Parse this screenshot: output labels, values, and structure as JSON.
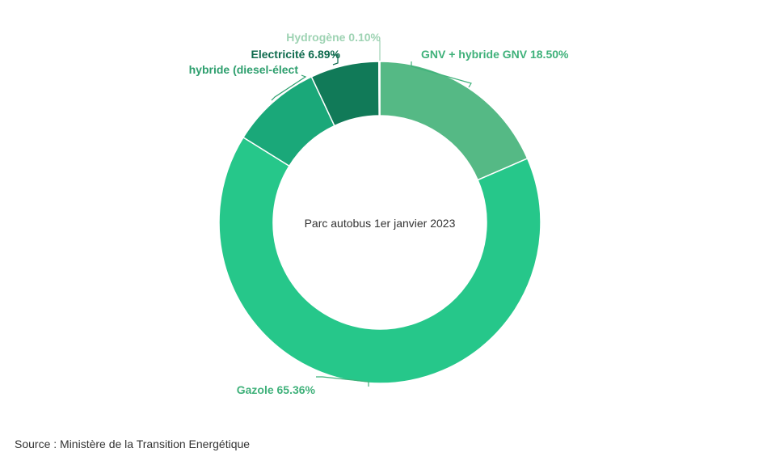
{
  "chart_data": {
    "type": "pie",
    "donut": true,
    "center_label": "Parc autobus 1er janvier 2023",
    "slices": [
      {
        "label": "GNV + hybride GNV",
        "value": 18.5,
        "display": "GNV + hybride GNV 18.50%",
        "color": "#55b985",
        "label_color": "#3fb17a"
      },
      {
        "label": "Gazole",
        "value": 65.36,
        "display": "Gazole 65.36%",
        "color": "#26c78a",
        "label_color": "#3fb17a"
      },
      {
        "label": "hybride (diesel-électrique)",
        "value": 9.15,
        "display": "hybride (diesel-élect",
        "color": "#1aa879",
        "label_color": "#2e9f6e"
      },
      {
        "label": "Electricité",
        "value": 6.89,
        "display": "Electricité 6.89%",
        "color": "#117a58",
        "label_color": "#0f6b4e"
      },
      {
        "label": "Hydrogène",
        "value": 0.1,
        "display": "Hydrogène 0.10%",
        "color": "#9ed3b3",
        "label_color": "#9ed3b3"
      }
    ]
  },
  "source": "Source : Ministère de la Transition Energétique"
}
